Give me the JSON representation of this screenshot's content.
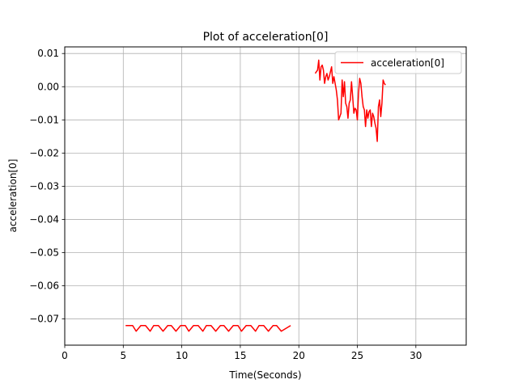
{
  "chart_data": {
    "type": "line",
    "title": "Plot of acceleration[0]",
    "xlabel": "Time(Seconds)",
    "ylabel": "acceleration[0]",
    "xlim": [
      0,
      34.3
    ],
    "ylim": [
      -0.0779,
      0.012
    ],
    "xticks": [
      0,
      5,
      10,
      15,
      20,
      25,
      30
    ],
    "xtick_labels": [
      "0",
      "5",
      "10",
      "15",
      "20",
      "25",
      "30"
    ],
    "yticks": [
      0.01,
      0.0,
      -0.01,
      -0.02,
      -0.03,
      -0.04,
      -0.05,
      -0.06,
      -0.07
    ],
    "ytick_labels": [
      "0.01",
      "0.00",
      "−0.01",
      "−0.02",
      "−0.03",
      "−0.04",
      "−0.05",
      "−0.06",
      "−0.07"
    ],
    "grid": true,
    "legend_position": "top-right",
    "series": [
      {
        "name": "acceleration[0]",
        "color": "#ff0000",
        "segments": [
          {
            "x": [
              5.2,
              5.8,
              6.1,
              6.5,
              6.9,
              7.3,
              7.6,
              8.0,
              8.4,
              8.8,
              9.1,
              9.5,
              9.9,
              10.3,
              10.6,
              11.0,
              11.4,
              11.8,
              12.1,
              12.5,
              12.9,
              13.3,
              13.6,
              14.0,
              14.4,
              14.8,
              15.1,
              15.5,
              15.9,
              16.3,
              16.6,
              17.0,
              17.4,
              17.8,
              18.1,
              18.5,
              19.3
            ],
            "y": [
              -0.072,
              -0.072,
              -0.0737,
              -0.072,
              -0.072,
              -0.0737,
              -0.072,
              -0.072,
              -0.0737,
              -0.072,
              -0.072,
              -0.0737,
              -0.072,
              -0.072,
              -0.0737,
              -0.072,
              -0.072,
              -0.0737,
              -0.072,
              -0.072,
              -0.0737,
              -0.072,
              -0.072,
              -0.0737,
              -0.072,
              -0.072,
              -0.0737,
              -0.072,
              -0.072,
              -0.0737,
              -0.072,
              -0.072,
              -0.0737,
              -0.072,
              -0.072,
              -0.0737,
              -0.072
            ]
          },
          {
            "x": [
              21.4,
              21.6,
              21.7,
              21.8,
              21.9,
              22.0,
              22.1,
              22.2,
              22.3,
              22.4,
              22.5,
              22.6,
              22.7,
              22.8,
              22.9,
              23.0,
              23.1,
              23.2,
              23.3,
              23.4,
              23.5,
              23.6,
              23.7,
              23.8,
              23.9,
              24.0,
              24.1,
              24.2,
              24.3,
              24.4,
              24.5,
              24.6,
              24.7,
              24.8,
              24.9,
              25.0,
              25.1,
              25.2,
              25.3,
              25.4,
              25.5,
              25.6,
              25.7,
              25.8,
              25.9,
              26.0,
              26.1,
              26.2,
              26.3,
              26.4,
              26.5,
              26.6,
              26.7,
              26.8,
              26.9,
              27.0,
              27.1,
              27.2,
              27.3,
              27.4
            ],
            "y": [
              0.004,
              0.005,
              0.008,
              0.002,
              0.006,
              0.0065,
              0.005,
              0.001,
              0.003,
              0.004,
              0.002,
              0.003,
              0.0045,
              0.006,
              0.001,
              0.003,
              0.001,
              -0.001,
              -0.004,
              -0.01,
              -0.009,
              -0.008,
              0.002,
              -0.003,
              0.0015,
              -0.005,
              -0.006,
              -0.0095,
              -0.005,
              -0.004,
              0.0015,
              -0.003,
              -0.008,
              -0.0065,
              -0.007,
              -0.01,
              -0.002,
              0.0025,
              0.001,
              -0.003,
              -0.006,
              -0.007,
              -0.012,
              -0.007,
              -0.0095,
              -0.0075,
              -0.007,
              -0.012,
              -0.008,
              -0.009,
              -0.011,
              -0.0125,
              -0.0165,
              -0.006,
              -0.004,
              -0.009,
              -0.005,
              0.002,
              0.001,
              0.0005
            ]
          }
        ]
      }
    ]
  }
}
